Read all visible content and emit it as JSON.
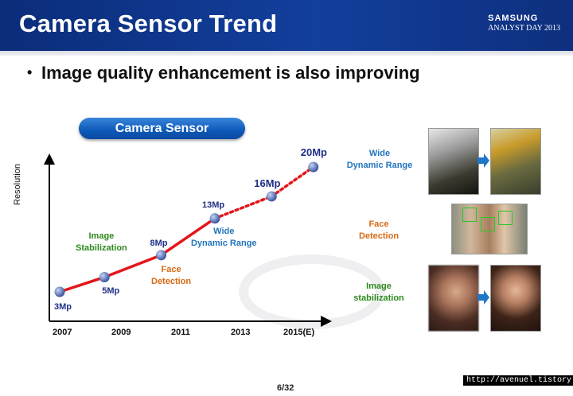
{
  "header": {
    "title": "Camera Sensor Trend",
    "brand_line1": "SAMSUNG",
    "brand_line2": "ANALYST DAY 2013"
  },
  "bullet": "Image quality enhancement is also improving",
  "section_pill": "Camera Sensor",
  "colors": {
    "header_bg": "#0b2d7a",
    "line_red": "#e3161b",
    "point_blue": "#6f86c3",
    "pill_blue": "#1464c8"
  },
  "chart_data": {
    "type": "line",
    "ylabel": "Resolution",
    "x_ticks": [
      "2007",
      "2009",
      "2011",
      "2013",
      "2015(E)"
    ],
    "series": [
      {
        "values": [
          {
            "x": 2007,
            "y": 3,
            "label": "3Mp"
          },
          {
            "x": 2008.5,
            "y": 5,
            "label": "5Mp"
          },
          {
            "x": 2010.4,
            "y": 8,
            "label": "8Mp"
          },
          {
            "x": 2012.2,
            "y": 13,
            "label": "13Mp"
          },
          {
            "x": 2014.1,
            "y": 16,
            "label": "16Mp"
          },
          {
            "x": 2015.5,
            "y": 20,
            "label": "20Mp"
          }
        ],
        "solid_until_index": 3,
        "projected_style": "dotted"
      }
    ],
    "annotations": [
      {
        "text": "Image\nStabilization",
        "color": "green"
      },
      {
        "text": "Face\nDetection",
        "color": "orange"
      },
      {
        "text": "Wide\nDynamic Range",
        "color": "blue"
      }
    ]
  },
  "features": [
    {
      "label": "Wide\nDynamic Range",
      "color": "blue"
    },
    {
      "label": "Face\nDetection",
      "color": "orange"
    },
    {
      "label": "Image\nstabilization",
      "color": "green"
    }
  ],
  "footer": {
    "page": "6/32",
    "url": "http://avenuel.tistory.com"
  }
}
